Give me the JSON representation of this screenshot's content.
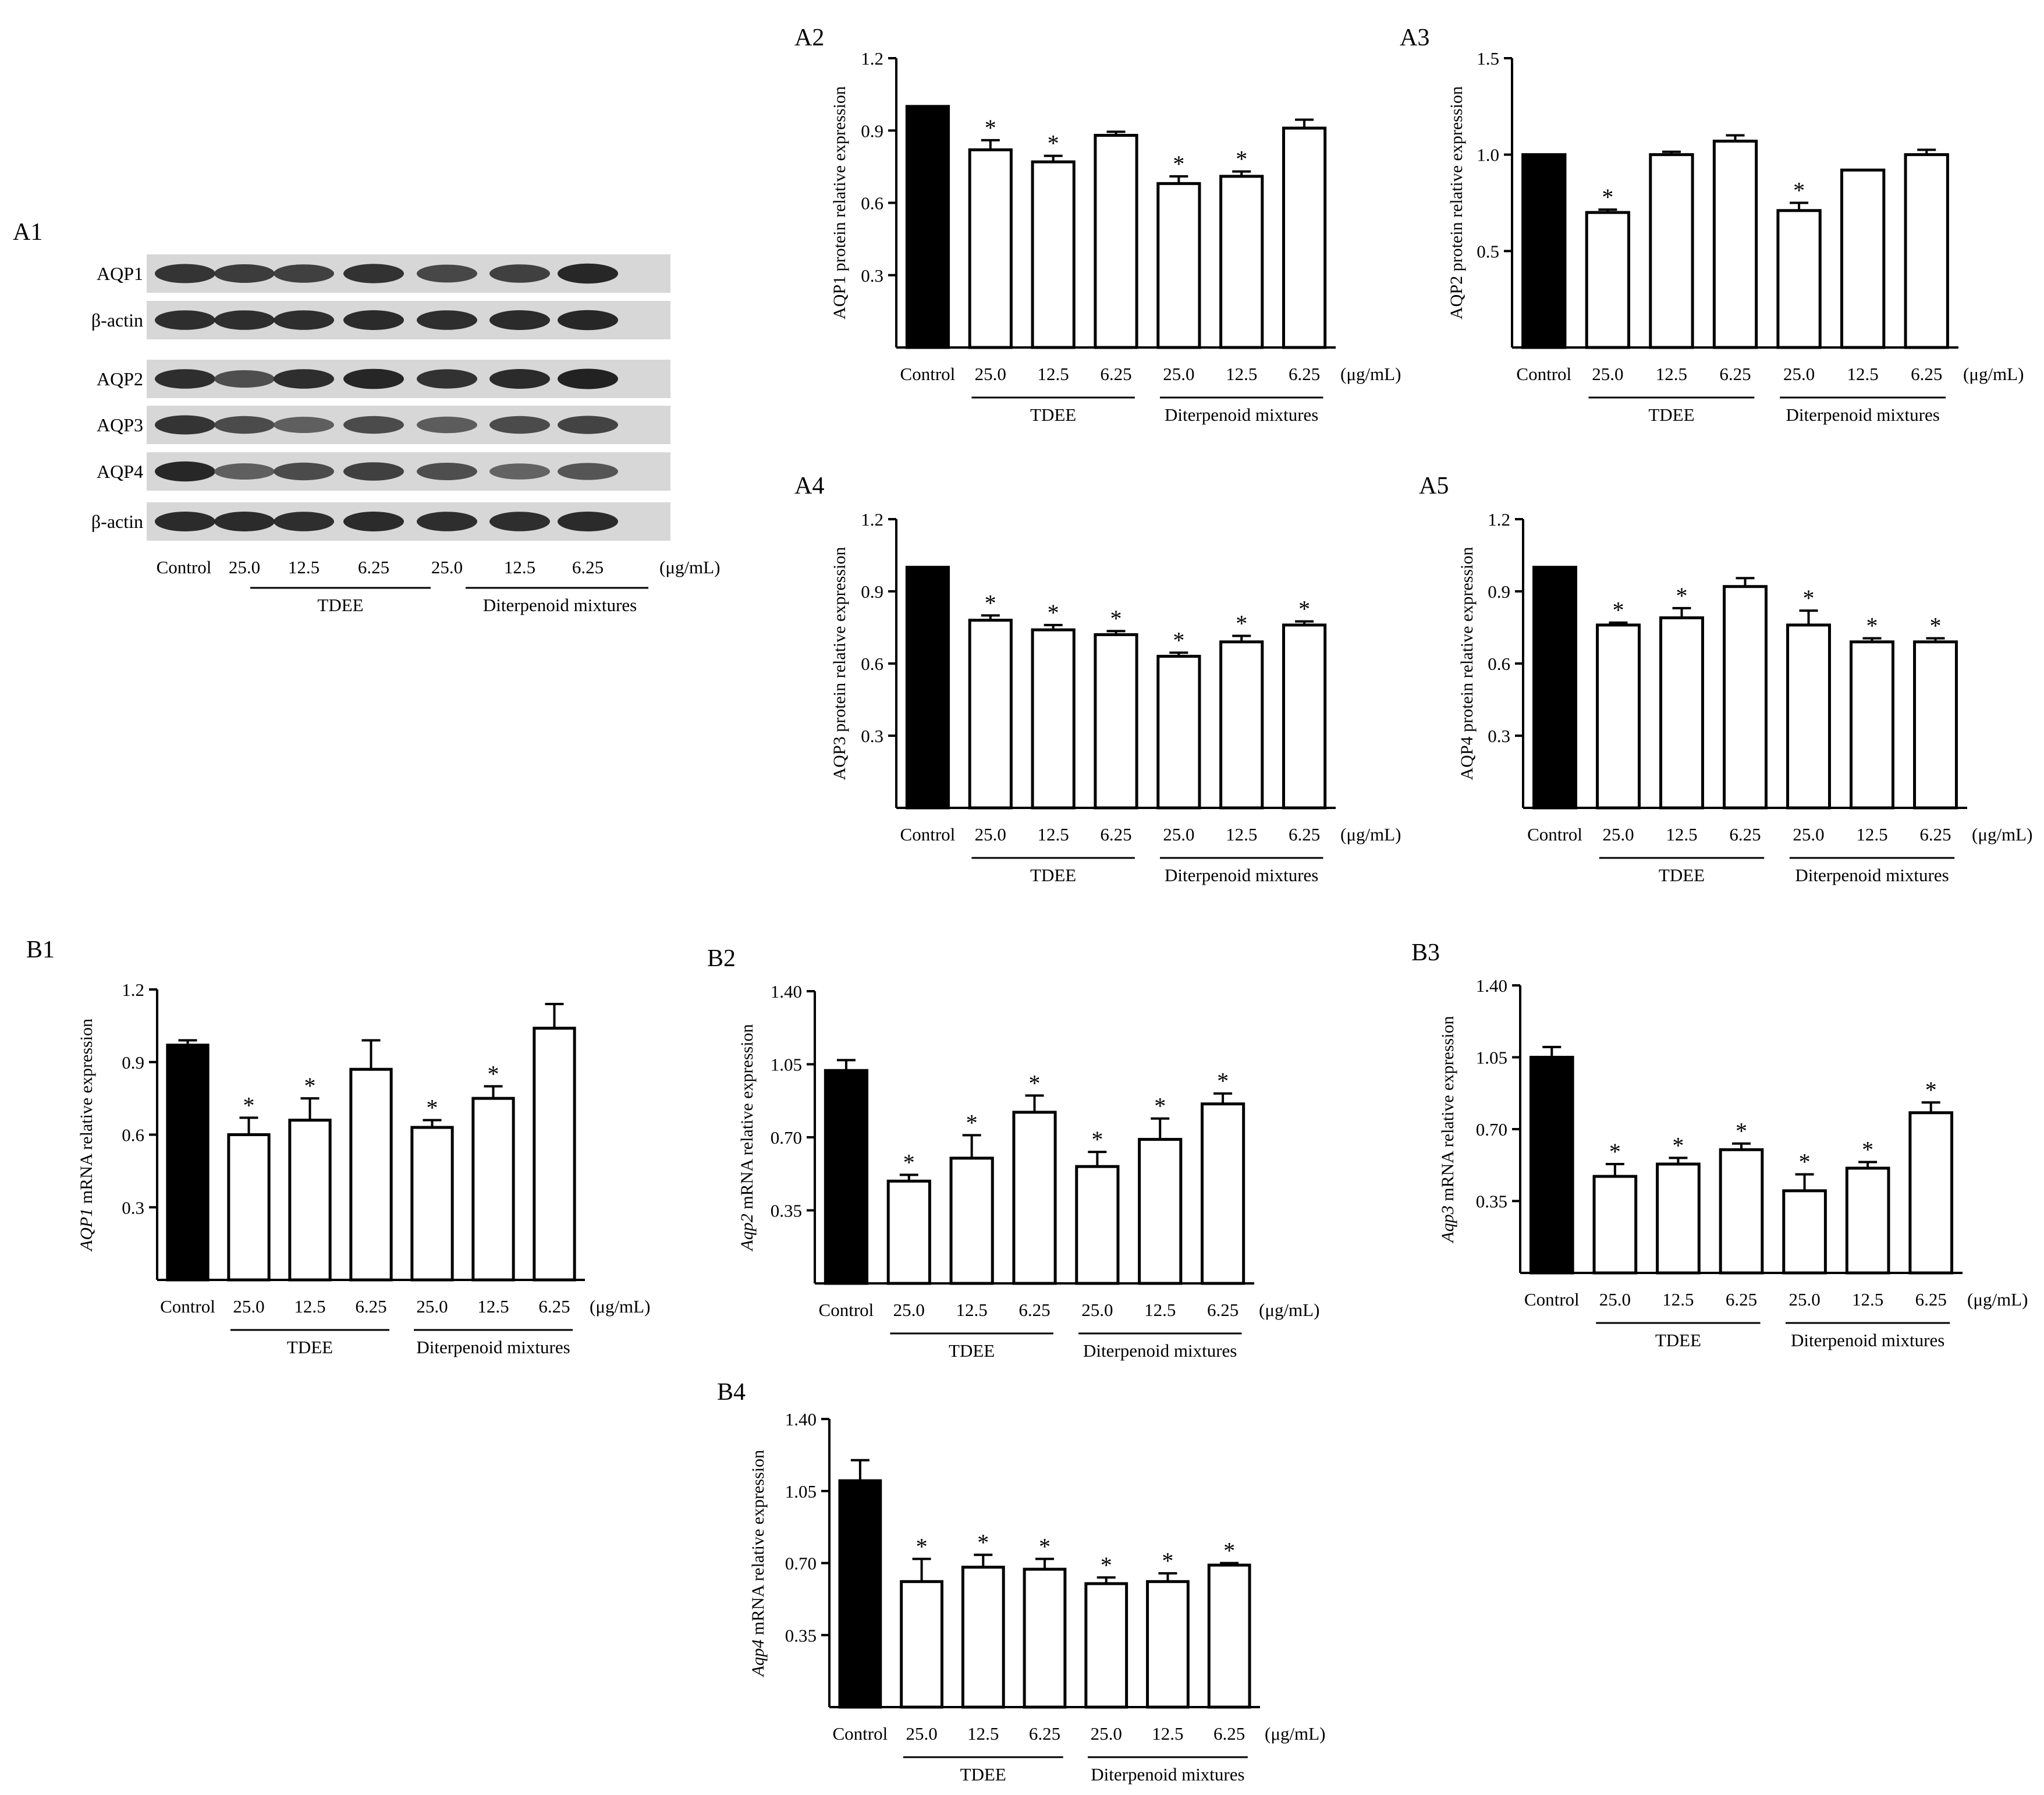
{
  "figure": {
    "units_label": "(μg/mL)",
    "group_labels": [
      "TDEE",
      "Diterpenoid mixtures"
    ],
    "categories": [
      "Control",
      "25.0",
      "12.5",
      "6.25",
      "25.0",
      "12.5",
      "6.25"
    ],
    "significance_mark": "*",
    "colors": {
      "control_bar": "#000000",
      "treatment_bar": "#ffffff",
      "axis": "#000000"
    }
  },
  "blot": {
    "label": "A1",
    "rows": [
      "AQP1",
      "β-actin",
      "AQP2",
      "AQP3",
      "AQP4",
      "β-actin"
    ],
    "lanes": [
      "Control",
      "25.0",
      "12.5",
      "6.25",
      "25.0",
      "12.5",
      "6.25"
    ],
    "units_label": "(μg/mL)",
    "group_labels": [
      "TDEE",
      "Diterpenoid mixtures"
    ],
    "band_intensity": [
      [
        0.85,
        0.8,
        0.78,
        0.86,
        0.74,
        0.78,
        0.92
      ],
      [
        0.88,
        0.88,
        0.88,
        0.9,
        0.88,
        0.9,
        0.92
      ],
      [
        0.88,
        0.7,
        0.88,
        0.93,
        0.86,
        0.9,
        0.95
      ],
      [
        0.85,
        0.72,
        0.6,
        0.72,
        0.62,
        0.72,
        0.76
      ],
      [
        0.92,
        0.6,
        0.72,
        0.78,
        0.7,
        0.58,
        0.66
      ],
      [
        0.9,
        0.9,
        0.88,
        0.9,
        0.88,
        0.88,
        0.9
      ]
    ]
  },
  "chart_data": [
    {
      "id": "A2",
      "type": "bar",
      "ylabel": "AQP1 protein  relative expression",
      "ylim": [
        0,
        1.2
      ],
      "yticks": [
        "0.3",
        "0.6",
        "0.9",
        "1.2"
      ],
      "categories": [
        "Control",
        "25.0",
        "12.5",
        "6.25",
        "25.0",
        "12.5",
        "6.25"
      ],
      "values": [
        1.0,
        0.82,
        0.77,
        0.88,
        0.68,
        0.71,
        0.91
      ],
      "errors": [
        0,
        0.04,
        0.025,
        0.015,
        0.03,
        0.02,
        0.035
      ],
      "significant": [
        false,
        true,
        true,
        false,
        true,
        true,
        false
      ],
      "units_label": "(μg/mL)",
      "group_labels": [
        "TDEE",
        "Diterpenoid mixtures"
      ]
    },
    {
      "id": "A3",
      "type": "bar",
      "ylabel": "AQP2 protein  relative expression",
      "ylim": [
        0,
        1.5
      ],
      "yticks": [
        "0.5",
        "1.0",
        "1.5"
      ],
      "categories": [
        "Control",
        "25.0",
        "12.5",
        "6.25",
        "25.0",
        "12.5",
        "6.25"
      ],
      "values": [
        1.0,
        0.7,
        1.0,
        1.07,
        0.71,
        0.92,
        1.0
      ],
      "errors": [
        0,
        0.015,
        0.015,
        0.03,
        0.04,
        0,
        0.025
      ],
      "significant": [
        false,
        true,
        false,
        false,
        true,
        false,
        false
      ],
      "units_label": "(μg/mL)",
      "group_labels": [
        "TDEE",
        "Diterpenoid mixtures"
      ]
    },
    {
      "id": "A4",
      "type": "bar",
      "ylabel": "AQP3 protein  relative expression",
      "ylim": [
        0,
        1.2
      ],
      "yticks": [
        "0.3",
        "0.6",
        "0.9",
        "1.2"
      ],
      "categories": [
        "Control",
        "25.0",
        "12.5",
        "6.25",
        "25.0",
        "12.5",
        "6.25"
      ],
      "values": [
        1.0,
        0.78,
        0.74,
        0.72,
        0.63,
        0.69,
        0.76
      ],
      "errors": [
        0,
        0.02,
        0.02,
        0.015,
        0.015,
        0.025,
        0.015
      ],
      "significant": [
        false,
        true,
        true,
        true,
        true,
        true,
        true
      ],
      "units_label": "(μg/mL)",
      "group_labels": [
        "TDEE",
        "Diterpenoid mixtures"
      ]
    },
    {
      "id": "A5",
      "type": "bar",
      "ylabel": "AQP4 protein  relative expression",
      "ylim": [
        0,
        1.2
      ],
      "yticks": [
        "0.3",
        "0.6",
        "0.9",
        "1.2"
      ],
      "categories": [
        "Control",
        "25.0",
        "12.5",
        "6.25",
        "25.0",
        "12.5",
        "6.25"
      ],
      "values": [
        1.0,
        0.76,
        0.79,
        0.92,
        0.76,
        0.69,
        0.69
      ],
      "errors": [
        0,
        0.01,
        0.04,
        0.035,
        0.06,
        0.015,
        0.015
      ],
      "significant": [
        false,
        true,
        true,
        false,
        true,
        true,
        true
      ],
      "units_label": "(μg/mL)",
      "group_labels": [
        "TDEE",
        "Diterpenoid mixtures"
      ]
    },
    {
      "id": "B1",
      "type": "bar",
      "ylabel_italic": "AQP1",
      "ylabel": " mRNA  relative expression",
      "ylim": [
        0,
        1.2
      ],
      "yticks": [
        "0.3",
        "0.6",
        "0.9",
        "1.2"
      ],
      "categories": [
        "Control",
        "25.0",
        "12.5",
        "6.25",
        "25.0",
        "12.5",
        "6.25"
      ],
      "values": [
        0.97,
        0.6,
        0.66,
        0.87,
        0.63,
        0.75,
        1.04
      ],
      "errors": [
        0.02,
        0.07,
        0.09,
        0.12,
        0.03,
        0.05,
        0.1
      ],
      "significant": [
        false,
        true,
        true,
        false,
        true,
        true,
        false
      ],
      "units_label": "(μg/mL)",
      "group_labels": [
        "TDEE",
        "Diterpenoid mixtures"
      ]
    },
    {
      "id": "B2",
      "type": "bar",
      "ylabel_italic": "Aqp2",
      "ylabel": " mRNA  relative expression",
      "ylim": [
        0,
        1.4
      ],
      "yticks": [
        "0.35",
        "0.70",
        "1.05",
        "1.40"
      ],
      "categories": [
        "Control",
        "25.0",
        "12.5",
        "6.25",
        "25.0",
        "12.5",
        "6.25"
      ],
      "values": [
        1.02,
        0.49,
        0.6,
        0.82,
        0.56,
        0.69,
        0.86
      ],
      "errors": [
        0.05,
        0.03,
        0.11,
        0.08,
        0.07,
        0.1,
        0.05
      ],
      "significant": [
        false,
        true,
        true,
        true,
        true,
        true,
        true
      ],
      "units_label": "(μg/mL)",
      "group_labels": [
        "TDEE",
        "Diterpenoid mixtures"
      ]
    },
    {
      "id": "B3",
      "type": "bar",
      "ylabel_italic": "Aqp3",
      "ylabel": " mRNA  relative expression",
      "ylim": [
        0,
        1.4
      ],
      "yticks": [
        "0.35",
        "0.70",
        "1.05",
        "1.40"
      ],
      "categories": [
        "Control",
        "25.0",
        "12.5",
        "6.25",
        "25.0",
        "12.5",
        "6.25"
      ],
      "values": [
        1.05,
        0.47,
        0.53,
        0.6,
        0.4,
        0.51,
        0.78
      ],
      "errors": [
        0.05,
        0.06,
        0.03,
        0.03,
        0.08,
        0.03,
        0.05
      ],
      "significant": [
        false,
        true,
        true,
        true,
        true,
        true,
        true
      ],
      "units_label": "(μg/mL)",
      "group_labels": [
        "TDEE",
        "Diterpenoid mixtures"
      ]
    },
    {
      "id": "B4",
      "type": "bar",
      "ylabel_italic": "Aqp4",
      "ylabel": " mRNA  relative expression",
      "ylim": [
        0,
        1.4
      ],
      "yticks": [
        "0.35",
        "0.70",
        "1.05",
        "1.40"
      ],
      "categories": [
        "Control",
        "25.0",
        "12.5",
        "6.25",
        "25.0",
        "12.5",
        "6.25"
      ],
      "values": [
        1.1,
        0.61,
        0.68,
        0.67,
        0.6,
        0.61,
        0.69
      ],
      "errors": [
        0.1,
        0.11,
        0.06,
        0.05,
        0.03,
        0.04,
        0.01
      ],
      "significant": [
        false,
        true,
        true,
        true,
        true,
        true,
        true
      ],
      "units_label": "(μg/mL)",
      "group_labels": [
        "TDEE",
        "Diterpenoid mixtures"
      ]
    }
  ]
}
